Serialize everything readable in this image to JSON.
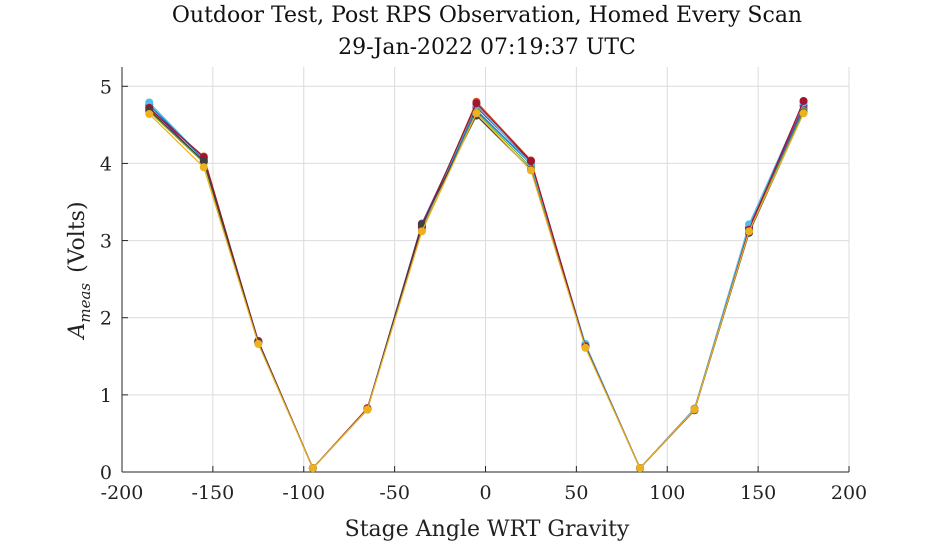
{
  "chart_data": {
    "type": "line",
    "title": "Outdoor Test, Post RPS Observation, Homed Every Scan",
    "subtitle": "29-Jan-2022 07:19:37 UTC",
    "xlabel": "Stage Angle WRT Gravity",
    "ylabel_main": "A",
    "ylabel_sub": "meas",
    "ylabel_units": "(Volts)",
    "xlim": [
      -200,
      200
    ],
    "ylim": [
      0,
      5.25
    ],
    "xticks": [
      -200,
      -150,
      -100,
      -50,
      0,
      50,
      100,
      150,
      200
    ],
    "yticks": [
      0,
      1,
      2,
      3,
      4,
      5
    ],
    "grid": true,
    "x": [
      -185,
      -155,
      -125,
      -95,
      -65,
      -35,
      -5,
      25,
      55,
      85,
      115,
      145,
      175
    ],
    "series": [
      {
        "color": "#0072BD",
        "values": [
          4.76,
          4.05,
          1.69,
          0.05,
          0.82,
          3.19,
          4.69,
          3.99,
          1.65,
          0.05,
          0.82,
          3.15,
          4.71
        ]
      },
      {
        "color": "#D95319",
        "values": [
          4.7,
          4.09,
          1.68,
          0.05,
          0.83,
          3.15,
          4.8,
          4.04,
          1.63,
          0.05,
          0.81,
          3.12,
          4.8
        ]
      },
      {
        "color": "#7E2F8E",
        "values": [
          4.73,
          4.02,
          1.7,
          0.05,
          0.82,
          3.22,
          4.73,
          4.02,
          1.64,
          0.05,
          0.82,
          3.17,
          4.75
        ]
      },
      {
        "color": "#77AC30",
        "values": [
          4.67,
          4.01,
          1.67,
          0.05,
          0.81,
          3.13,
          4.67,
          3.95,
          1.62,
          0.05,
          0.81,
          3.13,
          4.68
        ]
      },
      {
        "color": "#4DBEEE",
        "values": [
          4.79,
          4.06,
          1.69,
          0.05,
          0.82,
          3.17,
          4.76,
          3.99,
          1.66,
          0.05,
          0.82,
          3.21,
          4.79
        ]
      },
      {
        "color": "#A2142F",
        "values": [
          4.72,
          4.08,
          1.69,
          0.05,
          0.82,
          3.18,
          4.78,
          4.03,
          1.63,
          0.05,
          0.81,
          3.14,
          4.81
        ]
      },
      {
        "color": "#404040",
        "values": [
          4.69,
          4.03,
          1.68,
          0.05,
          0.81,
          3.21,
          4.62,
          3.92,
          1.62,
          0.05,
          0.8,
          3.1,
          4.66
        ]
      },
      {
        "color": "#EDB120",
        "values": [
          4.64,
          3.95,
          1.66,
          0.05,
          0.81,
          3.12,
          4.65,
          3.91,
          1.61,
          0.05,
          0.81,
          3.12,
          4.65
        ]
      }
    ]
  }
}
